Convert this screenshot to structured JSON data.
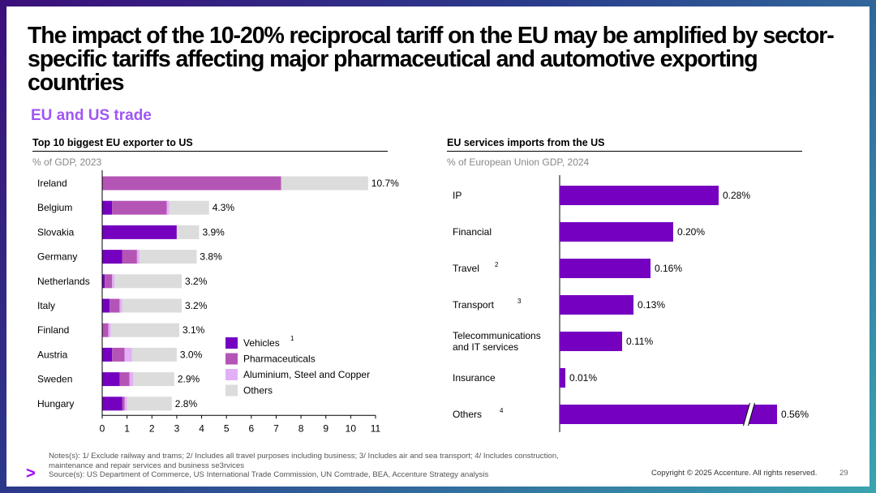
{
  "title": "The impact of the 10-20% reciprocal tariff on the EU may be amplified by sector-specific tariffs affecting major pharmaceutical and automotive exporting countries",
  "subtitle": "EU and US trade",
  "colors": {
    "vehicles": "#7500c0",
    "pharmaceuticals": "#b455b6",
    "aluminium": "#e2b0f5",
    "others": "#dcdcdc",
    "services": "#7500c0",
    "accent": "#a100ff"
  },
  "chart_data": [
    {
      "type": "bar",
      "orientation": "horizontal",
      "stacked": true,
      "title": "Top 10 biggest EU exporter to US",
      "unit_label": "% of GDP, 2023",
      "categories": [
        "Ireland",
        "Belgium",
        "Slovakia",
        "Germany",
        "Netherlands",
        "Italy",
        "Finland",
        "Austria",
        "Sweden",
        "Hungary"
      ],
      "totals_labels": [
        "10.7%",
        "4.3%",
        "3.9%",
        "3.8%",
        "3.2%",
        "3.2%",
        "3.1%",
        "3.0%",
        "2.9%",
        "2.8%"
      ],
      "totals": [
        10.7,
        4.3,
        3.9,
        3.8,
        3.2,
        3.2,
        3.1,
        3.0,
        2.9,
        2.8
      ],
      "series": [
        {
          "name": "Vehicles",
          "values": [
            0.0,
            0.4,
            3.0,
            0.8,
            0.1,
            0.3,
            0.0,
            0.4,
            0.7,
            0.8
          ]
        },
        {
          "name": "Pharmaceuticals",
          "values": [
            7.2,
            2.2,
            0.0,
            0.6,
            0.3,
            0.4,
            0.25,
            0.5,
            0.4,
            0.1
          ]
        },
        {
          "name": "Aluminium, Steel and Copper",
          "values": [
            0.0,
            0.1,
            0.0,
            0.1,
            0.1,
            0.1,
            0.1,
            0.3,
            0.15,
            0.1
          ]
        },
        {
          "name": "Others",
          "values": [
            3.5,
            1.6,
            0.9,
            2.3,
            2.7,
            2.4,
            2.75,
            1.8,
            1.65,
            1.8
          ]
        }
      ],
      "legend_note": "1",
      "xlim": [
        0,
        11
      ],
      "xticks": [
        "0",
        "1",
        "2",
        "3",
        "4",
        "5",
        "6",
        "7",
        "8",
        "9",
        "10",
        "11"
      ],
      "legend_position": "bottom-right"
    },
    {
      "type": "bar",
      "orientation": "horizontal",
      "title": "EU services imports from the US",
      "unit_label": "% of European Union GDP, 2024",
      "categories": [
        "IP",
        "Financial",
        "Travel",
        "Transport",
        "Telecommunications\nand IT services",
        "Insurance",
        "Others"
      ],
      "notes": [
        "",
        "",
        "2",
        "3",
        "",
        "",
        "4"
      ],
      "values": [
        0.28,
        0.2,
        0.16,
        0.13,
        0.11,
        0.01,
        0.56
      ],
      "value_labels": [
        "0.28%",
        "0.20%",
        "0.16%",
        "0.13%",
        "0.11%",
        "0.01%",
        "0.56%"
      ],
      "axis_break_on": "Others"
    }
  ],
  "footer": {
    "notes": "Notes(s): 1/ Exclude railway and trams; 2/ Includes all travel purposes including business; 3/ Includes air and sea transport; 4/ Includes construction, maintenance and repair services and business se3rvices",
    "source": "Source(s): US Department of Commerce, US International Trade Commission, UN Comtrade, BEA, Accenture Strategy analysis",
    "copyright": "Copyright © 2025 Accenture. All rights reserved.",
    "page": "29",
    "logo": ">"
  }
}
